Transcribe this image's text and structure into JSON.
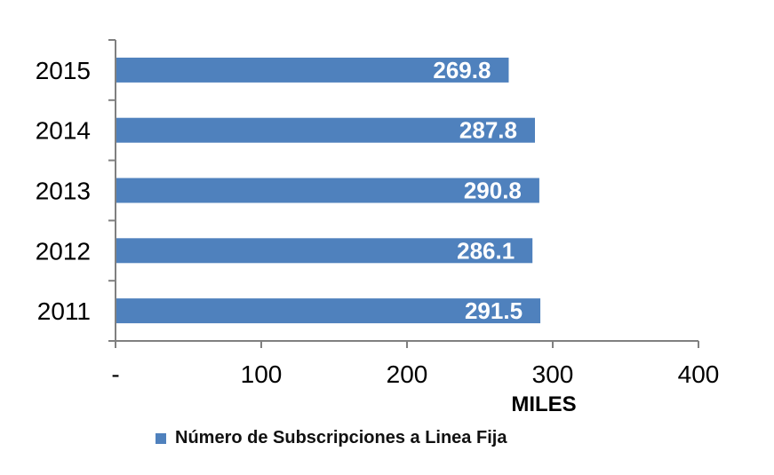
{
  "chart_data": {
    "type": "bar",
    "orientation": "horizontal",
    "categories": [
      "2015",
      "2014",
      "2013",
      "2012",
      "2011"
    ],
    "series": [
      {
        "name": "Número de Subscripciones a Linea Fija",
        "values": [
          269.8,
          287.8,
          290.8,
          286.1,
          291.5
        ]
      }
    ],
    "data_labels": [
      "269.8",
      "287.8",
      "290.8",
      "286.1",
      "291.5"
    ],
    "x_ticks": [
      "-",
      "100",
      "200",
      "300",
      "400"
    ],
    "x_tick_values": [
      0,
      100,
      200,
      300,
      400
    ],
    "xlim": [
      0,
      400
    ],
    "xlabel": "MILES",
    "ylabel": "",
    "title": "",
    "grid": false,
    "legend_position": "bottom",
    "bar_color": "#4f81bd",
    "label_color": "#ffffff"
  }
}
